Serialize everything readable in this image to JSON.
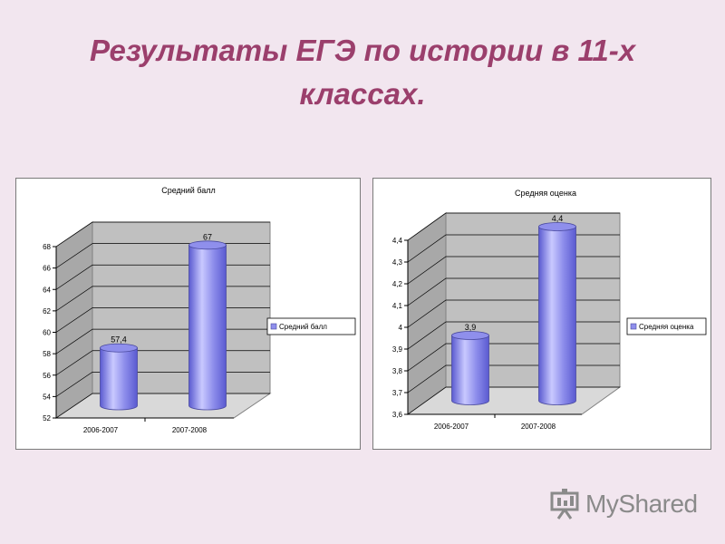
{
  "slide": {
    "title": "Результаты ЕГЭ по истории в 11-х классах."
  },
  "watermark": {
    "text": "MyShared",
    "icon": "presentation-board-icon"
  },
  "colors": {
    "background": "#f2e6ef",
    "title": "#9b3f6c",
    "bar_light": "#c9c9ff",
    "bar_mid": "#8f8fec",
    "bar_dark": "#5a5ad0",
    "wall": "#c0c0c0"
  },
  "chart_data": [
    {
      "type": "bar",
      "title": "Средний балл",
      "categories": [
        "2006-2007",
        "2007-2008"
      ],
      "series": [
        {
          "name": "Средний балл",
          "values": [
            57.4,
            67
          ]
        }
      ],
      "data_labels": [
        "57,4",
        "67"
      ],
      "yticks": [
        "52",
        "54",
        "56",
        "58",
        "60",
        "62",
        "64",
        "66",
        "68"
      ],
      "ylim": [
        52,
        68
      ],
      "grid": true,
      "legend_position": "right",
      "style": "3d-cylinder"
    },
    {
      "type": "bar",
      "title": "Средняя оценка",
      "categories": [
        "2006-2007",
        "2007-2008"
      ],
      "series": [
        {
          "name": "Средняя оценка",
          "values": [
            3.9,
            4.4
          ]
        }
      ],
      "data_labels": [
        "3,9",
        "4,4"
      ],
      "yticks": [
        "3,6",
        "3,7",
        "3,8",
        "3,9",
        "4",
        "4,1",
        "4,2",
        "4,3",
        "4,4"
      ],
      "ylim": [
        3.6,
        4.4
      ],
      "grid": true,
      "legend_position": "right",
      "style": "3d-cylinder"
    }
  ]
}
